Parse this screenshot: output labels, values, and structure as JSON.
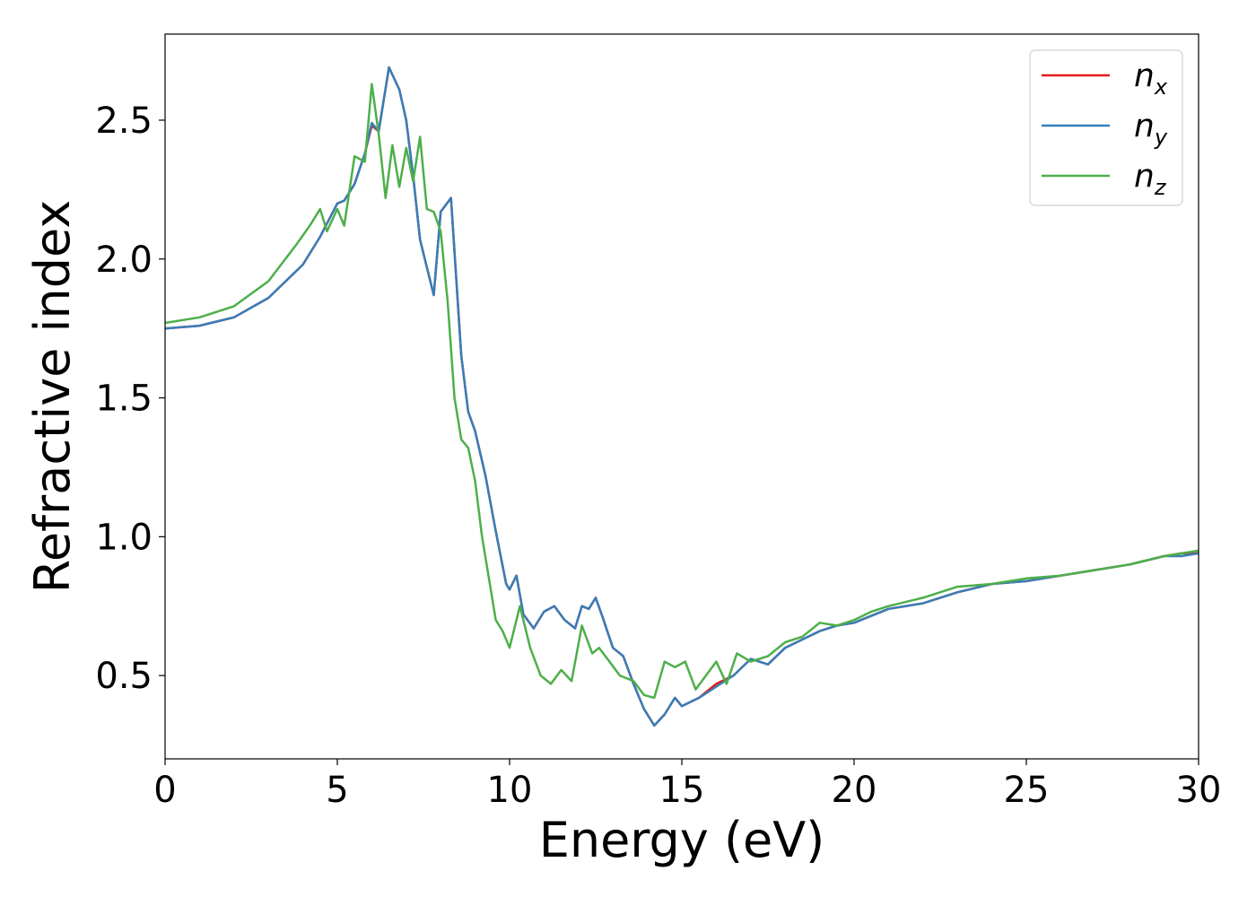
{
  "chart_data": {
    "type": "line",
    "xlabel": "Energy (eV)",
    "ylabel": "Refractive index",
    "xlim": [
      0,
      30
    ],
    "ylim": [
      0.2,
      2.81
    ],
    "xticks": [
      0,
      5,
      10,
      15,
      20,
      25,
      30
    ],
    "xtick_labels": [
      "0",
      "5",
      "10",
      "15",
      "20",
      "25",
      "30"
    ],
    "yticks": [
      0.5,
      1.0,
      1.5,
      2.0,
      2.5
    ],
    "ytick_labels": [
      "0.5",
      "1.0",
      "1.5",
      "2.0",
      "2.5"
    ],
    "grid": false,
    "legend_position": "top-right",
    "series": [
      {
        "name": "n",
        "subscript": "x",
        "color": "#e41a1c",
        "x": [
          0,
          1,
          2,
          3,
          4,
          4.5,
          5,
          5.2,
          5.5,
          5.8,
          6.0,
          6.2,
          6.5,
          6.8,
          7.0,
          7.2,
          7.4,
          7.6,
          7.8,
          8.0,
          8.3,
          8.6,
          8.8,
          9.0,
          9.3,
          9.6,
          9.9,
          10.0,
          10.2,
          10.4,
          10.7,
          11.0,
          11.3,
          11.6,
          11.9,
          12.1,
          12.3,
          12.5,
          12.7,
          13.0,
          13.3,
          13.6,
          13.9,
          14.2,
          14.5,
          14.8,
          15.0,
          15.5,
          16.0,
          16.5,
          17.0,
          17.5,
          18.0,
          18.5,
          19.0,
          19.5,
          20.0,
          21.0,
          22.0,
          23.0,
          24.0,
          25.0,
          26.0,
          27.0,
          28.0,
          29.0,
          29.5,
          30.0
        ],
        "values": [
          1.75,
          1.76,
          1.79,
          1.86,
          1.98,
          2.08,
          2.2,
          2.21,
          2.27,
          2.38,
          2.48,
          2.46,
          2.69,
          2.61,
          2.5,
          2.3,
          2.07,
          1.97,
          1.87,
          2.17,
          2.22,
          1.65,
          1.45,
          1.38,
          1.22,
          1.02,
          0.83,
          0.81,
          0.86,
          0.72,
          0.67,
          0.73,
          0.75,
          0.7,
          0.67,
          0.75,
          0.74,
          0.78,
          0.71,
          0.6,
          0.57,
          0.47,
          0.38,
          0.32,
          0.36,
          0.42,
          0.39,
          0.42,
          0.47,
          0.5,
          0.56,
          0.54,
          0.6,
          0.63,
          0.66,
          0.68,
          0.69,
          0.74,
          0.76,
          0.8,
          0.83,
          0.84,
          0.86,
          0.88,
          0.9,
          0.93,
          0.94,
          0.94
        ]
      },
      {
        "name": "n",
        "subscript": "y",
        "color": "#377eb8",
        "x": [
          0,
          1,
          2,
          3,
          4,
          4.5,
          5,
          5.2,
          5.5,
          5.8,
          6.0,
          6.2,
          6.5,
          6.8,
          7.0,
          7.2,
          7.4,
          7.6,
          7.8,
          8.0,
          8.3,
          8.6,
          8.8,
          9.0,
          9.3,
          9.6,
          9.9,
          10.0,
          10.2,
          10.4,
          10.7,
          11.0,
          11.3,
          11.6,
          11.9,
          12.1,
          12.3,
          12.5,
          12.7,
          13.0,
          13.3,
          13.6,
          13.9,
          14.2,
          14.5,
          14.8,
          15.0,
          15.5,
          16.0,
          16.5,
          17.0,
          17.5,
          18.0,
          18.5,
          19.0,
          19.5,
          20.0,
          21.0,
          22.0,
          23.0,
          24.0,
          25.0,
          26.0,
          27.0,
          28.0,
          29.0,
          29.5,
          30.0
        ],
        "values": [
          1.75,
          1.76,
          1.79,
          1.86,
          1.98,
          2.08,
          2.2,
          2.21,
          2.27,
          2.38,
          2.49,
          2.46,
          2.69,
          2.61,
          2.5,
          2.3,
          2.07,
          1.97,
          1.87,
          2.17,
          2.22,
          1.65,
          1.45,
          1.38,
          1.22,
          1.02,
          0.83,
          0.81,
          0.86,
          0.72,
          0.67,
          0.73,
          0.75,
          0.7,
          0.67,
          0.75,
          0.74,
          0.78,
          0.71,
          0.6,
          0.57,
          0.47,
          0.38,
          0.32,
          0.36,
          0.42,
          0.39,
          0.42,
          0.46,
          0.5,
          0.56,
          0.54,
          0.6,
          0.63,
          0.66,
          0.68,
          0.69,
          0.74,
          0.76,
          0.8,
          0.83,
          0.84,
          0.86,
          0.88,
          0.9,
          0.93,
          0.93,
          0.94
        ]
      },
      {
        "name": "n",
        "subscript": "z",
        "color": "#4daf4a",
        "x": [
          0,
          1,
          2,
          3,
          3.8,
          4.2,
          4.5,
          4.7,
          5.0,
          5.2,
          5.5,
          5.8,
          6.0,
          6.2,
          6.4,
          6.6,
          6.8,
          7.0,
          7.2,
          7.4,
          7.6,
          7.8,
          8.0,
          8.2,
          8.4,
          8.6,
          8.8,
          9.0,
          9.2,
          9.4,
          9.6,
          9.8,
          10.0,
          10.3,
          10.6,
          10.9,
          11.2,
          11.5,
          11.8,
          12.1,
          12.4,
          12.6,
          12.9,
          13.2,
          13.6,
          13.9,
          14.2,
          14.5,
          14.8,
          15.1,
          15.4,
          15.7,
          16.0,
          16.3,
          16.6,
          17.0,
          17.5,
          18.0,
          18.5,
          19.0,
          19.5,
          20.0,
          20.5,
          21.0,
          22.0,
          23.0,
          24.0,
          25.0,
          26.0,
          27.0,
          28.0,
          29.0,
          29.5,
          30.0
        ],
        "values": [
          1.77,
          1.79,
          1.83,
          1.92,
          2.05,
          2.12,
          2.18,
          2.1,
          2.18,
          2.12,
          2.37,
          2.35,
          2.63,
          2.45,
          2.22,
          2.41,
          2.26,
          2.4,
          2.28,
          2.44,
          2.18,
          2.17,
          2.1,
          1.85,
          1.5,
          1.35,
          1.32,
          1.2,
          1.0,
          0.85,
          0.7,
          0.66,
          0.6,
          0.75,
          0.6,
          0.5,
          0.47,
          0.52,
          0.48,
          0.68,
          0.58,
          0.6,
          0.55,
          0.5,
          0.48,
          0.43,
          0.42,
          0.55,
          0.53,
          0.55,
          0.45,
          0.5,
          0.55,
          0.47,
          0.58,
          0.55,
          0.57,
          0.62,
          0.64,
          0.69,
          0.68,
          0.7,
          0.73,
          0.75,
          0.78,
          0.82,
          0.83,
          0.85,
          0.86,
          0.88,
          0.9,
          0.93,
          0.94,
          0.95
        ]
      }
    ]
  }
}
